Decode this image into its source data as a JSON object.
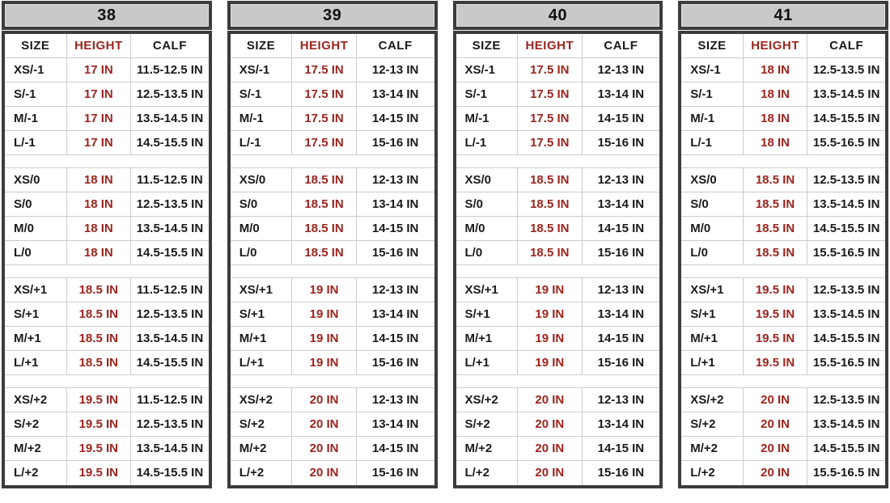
{
  "colors": {
    "accent_red": "#9C241D",
    "caption_bg": "#C9C9C9",
    "frame": "#3C3C3C",
    "grid_line": "#CCCCCC",
    "text": "#1A1A1A"
  },
  "columns": [
    "SIZE",
    "HEIGHT",
    "CALF"
  ],
  "tables": [
    {
      "title": "38",
      "groups": [
        [
          [
            "XS/-1",
            "17 IN",
            "11.5-12.5 IN"
          ],
          [
            "S/-1",
            "17 IN",
            "12.5-13.5 IN"
          ],
          [
            "M/-1",
            "17 IN",
            "13.5-14.5 IN"
          ],
          [
            "L/-1",
            "17 IN",
            "14.5-15.5 IN"
          ]
        ],
        [
          [
            "XS/0",
            "18 IN",
            "11.5-12.5 IN"
          ],
          [
            "S/0",
            "18 IN",
            "12.5-13.5 IN"
          ],
          [
            "M/0",
            "18 IN",
            "13.5-14.5 IN"
          ],
          [
            "L/0",
            "18 IN",
            "14.5-15.5 IN"
          ]
        ],
        [
          [
            "XS/+1",
            "18.5 IN",
            "11.5-12.5 IN"
          ],
          [
            "S/+1",
            "18.5 IN",
            "12.5-13.5 IN"
          ],
          [
            "M/+1",
            "18.5 IN",
            "13.5-14.5 IN"
          ],
          [
            "L/+1",
            "18.5 IN",
            "14.5-15.5 IN"
          ]
        ],
        [
          [
            "XS/+2",
            "19.5 IN",
            "11.5-12.5 IN"
          ],
          [
            "S/+2",
            "19.5 IN",
            "12.5-13.5 IN"
          ],
          [
            "M/+2",
            "19.5 IN",
            "13.5-14.5 IN"
          ],
          [
            "L/+2",
            "19.5 IN",
            "14.5-15.5 IN"
          ]
        ]
      ]
    },
    {
      "title": "39",
      "groups": [
        [
          [
            "XS/-1",
            "17.5 IN",
            "12-13 IN"
          ],
          [
            "S/-1",
            "17.5 IN",
            "13-14 IN"
          ],
          [
            "M/-1",
            "17.5 IN",
            "14-15 IN"
          ],
          [
            "L/-1",
            "17.5 IN",
            "15-16 IN"
          ]
        ],
        [
          [
            "XS/0",
            "18.5 IN",
            "12-13 IN"
          ],
          [
            "S/0",
            "18.5 IN",
            "13-14 IN"
          ],
          [
            "M/0",
            "18.5 IN",
            "14-15 IN"
          ],
          [
            "L/0",
            "18.5 IN",
            "15-16 IN"
          ]
        ],
        [
          [
            "XS/+1",
            "19 IN",
            "12-13 IN"
          ],
          [
            "S/+1",
            "19 IN",
            "13-14 IN"
          ],
          [
            "M/+1",
            "19 IN",
            "14-15 IN"
          ],
          [
            "L/+1",
            "19 IN",
            "15-16 IN"
          ]
        ],
        [
          [
            "XS/+2",
            "20 IN",
            "12-13 IN"
          ],
          [
            "S/+2",
            "20 IN",
            "13-14 IN"
          ],
          [
            "M/+2",
            "20 IN",
            "14-15 IN"
          ],
          [
            "L/+2",
            "20 IN",
            "15-16 IN"
          ]
        ]
      ]
    },
    {
      "title": "40",
      "groups": [
        [
          [
            "XS/-1",
            "17.5 IN",
            "12-13 IN"
          ],
          [
            "S/-1",
            "17.5 IN",
            "13-14 IN"
          ],
          [
            "M/-1",
            "17.5 IN",
            "14-15 IN"
          ],
          [
            "L/-1",
            "17.5 IN",
            "15-16 IN"
          ]
        ],
        [
          [
            "XS/0",
            "18.5 IN",
            "12-13 IN"
          ],
          [
            "S/0",
            "18.5 IN",
            "13-14 IN"
          ],
          [
            "M/0",
            "18.5 IN",
            "14-15 IN"
          ],
          [
            "L/0",
            "18.5 IN",
            "15-16 IN"
          ]
        ],
        [
          [
            "XS/+1",
            "19 IN",
            "12-13 IN"
          ],
          [
            "S/+1",
            "19 IN",
            "13-14 IN"
          ],
          [
            "M/+1",
            "19 IN",
            "14-15 IN"
          ],
          [
            "L/+1",
            "19 IN",
            "15-16 IN"
          ]
        ],
        [
          [
            "XS/+2",
            "20 IN",
            "12-13 IN"
          ],
          [
            "S/+2",
            "20 IN",
            "13-14 IN"
          ],
          [
            "M/+2",
            "20 IN",
            "14-15 IN"
          ],
          [
            "L/+2",
            "20 IN",
            "15-16 IN"
          ]
        ]
      ]
    },
    {
      "title": "41",
      "groups": [
        [
          [
            "XS/-1",
            "18 IN",
            "12.5-13.5 IN"
          ],
          [
            "S/-1",
            "18 IN",
            "13.5-14.5 IN"
          ],
          [
            "M/-1",
            "18 IN",
            "14.5-15.5 IN"
          ],
          [
            "L/-1",
            "18 IN",
            "15.5-16.5 IN"
          ]
        ],
        [
          [
            "XS/0",
            "18.5 IN",
            "12.5-13.5 IN"
          ],
          [
            "S/0",
            "18.5 IN",
            "13.5-14.5 IN"
          ],
          [
            "M/0",
            "18.5 IN",
            "14.5-15.5 IN"
          ],
          [
            "L/0",
            "18.5 IN",
            "15.5-16.5 IN"
          ]
        ],
        [
          [
            "XS/+1",
            "19.5 IN",
            "12.5-13.5 IN"
          ],
          [
            "S/+1",
            "19.5 IN",
            "13.5-14.5 IN"
          ],
          [
            "M/+1",
            "19.5 IN",
            "14.5-15.5 IN"
          ],
          [
            "L/+1",
            "19.5 IN",
            "15.5-16.5 IN"
          ]
        ],
        [
          [
            "XS/+2",
            "20 IN",
            "12.5-13.5 IN"
          ],
          [
            "S/+2",
            "20 IN",
            "13.5-14.5 IN"
          ],
          [
            "M/+2",
            "20 IN",
            "14.5-15.5 IN"
          ],
          [
            "L/+2",
            "20 IN",
            "15.5-16.5 IN"
          ]
        ]
      ]
    }
  ]
}
